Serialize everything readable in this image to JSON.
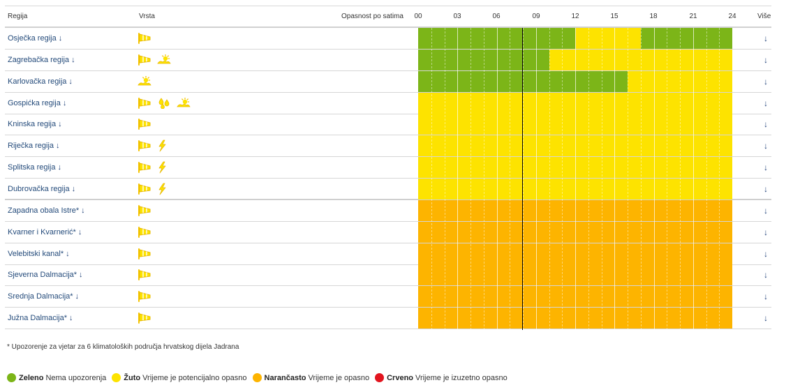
{
  "colors": {
    "zeleno": "#7cb518",
    "zuto": "#fde300",
    "narancasto": "#fdb400",
    "crveno": "#e2151f",
    "link": "#234a7a"
  },
  "header": {
    "region": "Regija",
    "type": "Vrsta",
    "hours": "Opasnost po satima",
    "ticks": [
      "00",
      "03",
      "06",
      "09",
      "12",
      "15",
      "18",
      "21",
      "24"
    ],
    "more": "Više"
  },
  "rows": [
    {
      "name": "Osječka regija",
      "icons": [
        "wind-icon"
      ],
      "hourly": [
        "zeleno",
        "zeleno",
        "zeleno",
        "zeleno",
        "zeleno",
        "zeleno",
        "zeleno",
        "zeleno",
        "zeleno",
        "zeleno",
        "zeleno",
        "zeleno",
        "zuto",
        "zuto",
        "zuto",
        "zuto",
        "zuto",
        "zeleno",
        "zeleno",
        "zeleno",
        "zeleno",
        "zeleno",
        "zeleno",
        "zeleno"
      ]
    },
    {
      "name": "Zagrebačka regija",
      "icons": [
        "wind-icon",
        "heat-icon"
      ],
      "hourly": [
        "zeleno",
        "zeleno",
        "zeleno",
        "zeleno",
        "zeleno",
        "zeleno",
        "zeleno",
        "zeleno",
        "zeleno",
        "zeleno",
        "zuto",
        "zuto",
        "zuto",
        "zuto",
        "zuto",
        "zuto",
        "zuto",
        "zuto",
        "zuto",
        "zuto",
        "zuto",
        "zuto",
        "zuto",
        "zuto"
      ]
    },
    {
      "name": "Karlovačka regija",
      "icons": [
        "heat-icon"
      ],
      "hourly": [
        "zeleno",
        "zeleno",
        "zeleno",
        "zeleno",
        "zeleno",
        "zeleno",
        "zeleno",
        "zeleno",
        "zeleno",
        "zeleno",
        "zeleno",
        "zeleno",
        "zeleno",
        "zeleno",
        "zeleno",
        "zeleno",
        "zuto",
        "zuto",
        "zuto",
        "zuto",
        "zuto",
        "zuto",
        "zuto",
        "zuto"
      ]
    },
    {
      "name": "Gospićka regija",
      "icons": [
        "wind-icon",
        "rain-icon",
        "heat-icon"
      ],
      "hourly": [
        "zuto",
        "zuto",
        "zuto",
        "zuto",
        "zuto",
        "zuto",
        "zuto",
        "zuto",
        "zuto",
        "zuto",
        "zuto",
        "zuto",
        "zuto",
        "zuto",
        "zuto",
        "zuto",
        "zuto",
        "zuto",
        "zuto",
        "zuto",
        "zuto",
        "zuto",
        "zuto",
        "zuto"
      ]
    },
    {
      "name": "Kninska regija",
      "icons": [
        "wind-icon"
      ],
      "hourly": [
        "zuto",
        "zuto",
        "zuto",
        "zuto",
        "zuto",
        "zuto",
        "zuto",
        "zuto",
        "zuto",
        "zuto",
        "zuto",
        "zuto",
        "zuto",
        "zuto",
        "zuto",
        "zuto",
        "zuto",
        "zuto",
        "zuto",
        "zuto",
        "zuto",
        "zuto",
        "zuto",
        "zuto"
      ]
    },
    {
      "name": "Riječka regija",
      "icons": [
        "wind-icon",
        "thunderstorm-icon"
      ],
      "hourly": [
        "zuto",
        "zuto",
        "zuto",
        "zuto",
        "zuto",
        "zuto",
        "zuto",
        "zuto",
        "zuto",
        "zuto",
        "zuto",
        "zuto",
        "zuto",
        "zuto",
        "zuto",
        "zuto",
        "zuto",
        "zuto",
        "zuto",
        "zuto",
        "zuto",
        "zuto",
        "zuto",
        "zuto"
      ]
    },
    {
      "name": "Splitska regija",
      "icons": [
        "wind-icon",
        "thunderstorm-icon"
      ],
      "hourly": [
        "zuto",
        "zuto",
        "zuto",
        "zuto",
        "zuto",
        "zuto",
        "zuto",
        "zuto",
        "zuto",
        "zuto",
        "zuto",
        "zuto",
        "zuto",
        "zuto",
        "zuto",
        "zuto",
        "zuto",
        "zuto",
        "zuto",
        "zuto",
        "zuto",
        "zuto",
        "zuto",
        "zuto"
      ]
    },
    {
      "name": "Dubrovačka regija",
      "icons": [
        "wind-icon",
        "thunderstorm-icon"
      ],
      "hourly": [
        "zuto",
        "zuto",
        "zuto",
        "zuto",
        "zuto",
        "zuto",
        "zuto",
        "zuto",
        "zuto",
        "zuto",
        "zuto",
        "zuto",
        "zuto",
        "zuto",
        "zuto",
        "zuto",
        "zuto",
        "zuto",
        "zuto",
        "zuto",
        "zuto",
        "zuto",
        "zuto",
        "zuto"
      ]
    },
    {
      "name": "Zapadna obala Istre*",
      "icons": [
        "wind-icon"
      ],
      "hourly": [
        "narancasto",
        "narancasto",
        "narancasto",
        "narancasto",
        "narancasto",
        "narancasto",
        "narancasto",
        "narancasto",
        "narancasto",
        "narancasto",
        "narancasto",
        "narancasto",
        "narancasto",
        "narancasto",
        "narancasto",
        "narancasto",
        "narancasto",
        "narancasto",
        "narancasto",
        "narancasto",
        "narancasto",
        "narancasto",
        "narancasto",
        "narancasto"
      ]
    },
    {
      "name": "Kvarner i Kvarnerić*",
      "icons": [
        "wind-icon"
      ],
      "hourly": [
        "narancasto",
        "narancasto",
        "narancasto",
        "narancasto",
        "narancasto",
        "narancasto",
        "narancasto",
        "narancasto",
        "narancasto",
        "narancasto",
        "narancasto",
        "narancasto",
        "narancasto",
        "narancasto",
        "narancasto",
        "narancasto",
        "narancasto",
        "narancasto",
        "narancasto",
        "narancasto",
        "narancasto",
        "narancasto",
        "narancasto",
        "narancasto"
      ]
    },
    {
      "name": "Velebitski kanal*",
      "icons": [
        "wind-icon"
      ],
      "hourly": [
        "narancasto",
        "narancasto",
        "narancasto",
        "narancasto",
        "narancasto",
        "narancasto",
        "narancasto",
        "narancasto",
        "narancasto",
        "narancasto",
        "narancasto",
        "narancasto",
        "narancasto",
        "narancasto",
        "narancasto",
        "narancasto",
        "narancasto",
        "narancasto",
        "narancasto",
        "narancasto",
        "narancasto",
        "narancasto",
        "narancasto",
        "narancasto"
      ]
    },
    {
      "name": "Sjeverna Dalmacija*",
      "icons": [
        "wind-icon"
      ],
      "hourly": [
        "narancasto",
        "narancasto",
        "narancasto",
        "narancasto",
        "narancasto",
        "narancasto",
        "narancasto",
        "narancasto",
        "narancasto",
        "narancasto",
        "narancasto",
        "narancasto",
        "narancasto",
        "narancasto",
        "narancasto",
        "narancasto",
        "narancasto",
        "narancasto",
        "narancasto",
        "narancasto",
        "narancasto",
        "narancasto",
        "narancasto",
        "narancasto"
      ]
    },
    {
      "name": "Srednja Dalmacija*",
      "icons": [
        "wind-icon"
      ],
      "hourly": [
        "narancasto",
        "narancasto",
        "narancasto",
        "narancasto",
        "narancasto",
        "narancasto",
        "narancasto",
        "narancasto",
        "narancasto",
        "narancasto",
        "narancasto",
        "narancasto",
        "narancasto",
        "narancasto",
        "narancasto",
        "narancasto",
        "narancasto",
        "narancasto",
        "narancasto",
        "narancasto",
        "narancasto",
        "narancasto",
        "narancasto",
        "narancasto"
      ]
    },
    {
      "name": "Južna Dalmacija*",
      "icons": [
        "wind-icon"
      ],
      "hourly": [
        "narancasto",
        "narancasto",
        "narancasto",
        "narancasto",
        "narancasto",
        "narancasto",
        "narancasto",
        "narancasto",
        "narancasto",
        "narancasto",
        "narancasto",
        "narancasto",
        "narancasto",
        "narancasto",
        "narancasto",
        "narancasto",
        "narancasto",
        "narancasto",
        "narancasto",
        "narancasto",
        "narancasto",
        "narancasto",
        "narancasto",
        "narancasto"
      ]
    }
  ],
  "footnote": "* Upozorenje za vjetar za 6 klimatoloških područja hrvatskog dijela Jadrana",
  "legend": [
    {
      "level": "zeleno",
      "label": "Zeleno",
      "desc": "Nema upozorenja"
    },
    {
      "level": "zuto",
      "label": "Žuto",
      "desc": "Vrijeme je potencijalno opasno"
    },
    {
      "level": "narancasto",
      "label": "Narančasto",
      "desc": "Vrijeme je opasno"
    },
    {
      "level": "crveno",
      "label": "Crveno",
      "desc": "Vrijeme je izuzetno opasno"
    }
  ]
}
